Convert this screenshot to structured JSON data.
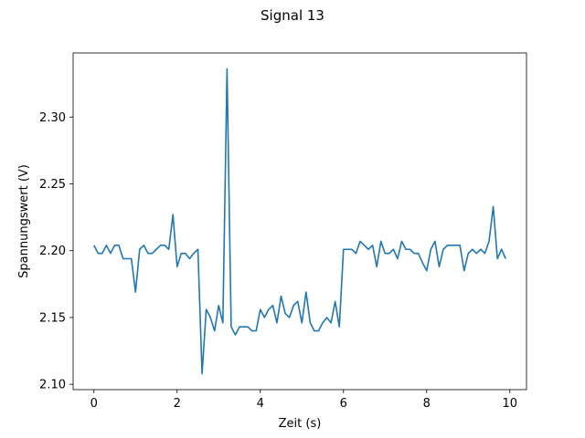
{
  "chart_data": {
    "type": "line",
    "title": "Signal 13",
    "xlabel": "Zeit (s)",
    "ylabel": "Spannungswert (V)",
    "xlim": [
      -0.5,
      10.4
    ],
    "ylim": [
      2.096,
      2.348
    ],
    "xticks": [
      0,
      2,
      4,
      6,
      8,
      10
    ],
    "xtick_labels": [
      "0",
      "2",
      "4",
      "6",
      "8",
      "10"
    ],
    "yticks": [
      2.1,
      2.15,
      2.2,
      2.25,
      2.3
    ],
    "ytick_labels": [
      "2.10",
      "2.15",
      "2.20",
      "2.25",
      "2.30"
    ],
    "grid": false,
    "line_color": "#1f77b4",
    "series": [
      {
        "x": [
          0.0,
          0.1,
          0.2,
          0.3,
          0.4,
          0.5,
          0.6,
          0.7,
          0.8,
          0.9,
          1.0,
          1.1,
          1.2,
          1.3,
          1.4,
          1.5,
          1.6,
          1.7,
          1.8,
          1.9,
          2.0,
          2.1,
          2.2,
          2.3,
          2.4,
          2.5,
          2.6,
          2.7,
          2.8,
          2.9,
          3.0,
          3.1,
          3.2,
          3.3,
          3.4,
          3.5,
          3.6,
          3.7,
          3.8,
          3.9,
          4.0,
          4.1,
          4.2,
          4.3,
          4.4,
          4.5,
          4.6,
          4.7,
          4.8,
          4.9,
          5.0,
          5.1,
          5.2,
          5.3,
          5.4,
          5.5,
          5.6,
          5.7,
          5.8,
          5.9,
          6.0,
          6.1,
          6.2,
          6.3,
          6.4,
          6.5,
          6.6,
          6.7,
          6.8,
          6.9,
          7.0,
          7.1,
          7.2,
          7.3,
          7.4,
          7.5,
          7.6,
          7.7,
          7.8,
          7.9,
          8.0,
          8.1,
          8.2,
          8.3,
          8.4,
          8.5,
          8.6,
          8.7,
          8.8,
          8.9,
          9.0,
          9.1,
          9.2,
          9.3,
          9.4,
          9.5,
          9.6,
          9.7,
          9.8,
          9.9
        ],
        "values": [
          2.204,
          2.198,
          2.198,
          2.204,
          2.198,
          2.204,
          2.204,
          2.194,
          2.194,
          2.194,
          2.169,
          2.201,
          2.204,
          2.198,
          2.198,
          2.201,
          2.204,
          2.204,
          2.201,
          2.227,
          2.188,
          2.198,
          2.198,
          2.194,
          2.198,
          2.201,
          2.108,
          2.156,
          2.15,
          2.14,
          2.159,
          2.146,
          2.336,
          2.143,
          2.137,
          2.143,
          2.143,
          2.143,
          2.14,
          2.14,
          2.156,
          2.15,
          2.156,
          2.159,
          2.146,
          2.166,
          2.153,
          2.15,
          2.159,
          2.162,
          2.146,
          2.169,
          2.146,
          2.14,
          2.14,
          2.146,
          2.15,
          2.146,
          2.162,
          2.143,
          2.201,
          2.201,
          2.201,
          2.198,
          2.207,
          2.204,
          2.201,
          2.204,
          2.188,
          2.207,
          2.198,
          2.198,
          2.201,
          2.194,
          2.207,
          2.201,
          2.201,
          2.198,
          2.198,
          2.191,
          2.185,
          2.201,
          2.207,
          2.188,
          2.201,
          2.204,
          2.204,
          2.204,
          2.204,
          2.185,
          2.198,
          2.201,
          2.198,
          2.201,
          2.198,
          2.207,
          2.233,
          2.194,
          2.201,
          2.194
        ]
      }
    ]
  }
}
